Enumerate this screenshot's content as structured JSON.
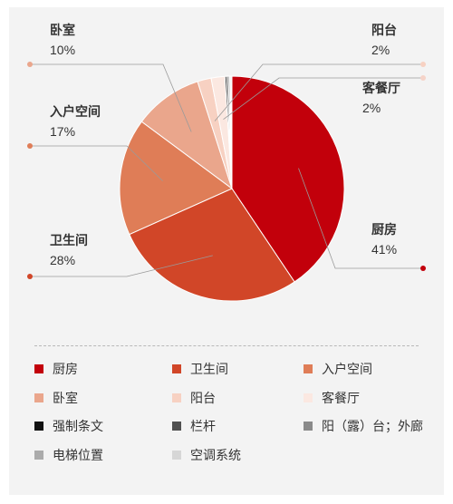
{
  "chart_data": {
    "type": "pie",
    "slices": [
      {
        "label": "厨房",
        "value": 41,
        "display": "41%",
        "color": "#c2000b"
      },
      {
        "label": "卫生间",
        "value": 28,
        "display": "28%",
        "color": "#d14628"
      },
      {
        "label": "入户空间",
        "value": 17,
        "display": "17%",
        "color": "#df7d57"
      },
      {
        "label": "卧室",
        "value": 10,
        "display": "10%",
        "color": "#eaa68c"
      },
      {
        "label": "阳台",
        "value": 2,
        "display": "2%",
        "color": "#f7d1c2"
      },
      {
        "label": "客餐厅",
        "value": 2,
        "display": "2%",
        "color": "#fbe8e1"
      },
      {
        "label": "强制条文",
        "value": 0.25,
        "display": "",
        "color": "#111111"
      },
      {
        "label": "栏杆",
        "value": 0.25,
        "display": "",
        "color": "#505050"
      },
      {
        "label": "阳（露）台；外廊",
        "value": 0.2,
        "display": "",
        "color": "#8a8a8a"
      },
      {
        "label": "电梯位置",
        "value": 0.15,
        "display": "",
        "color": "#ababab"
      },
      {
        "label": "空调系统",
        "value": 0.15,
        "display": "",
        "color": "#d6d6d6"
      }
    ],
    "legend_position": "bottom"
  },
  "legend": [
    {
      "label": "厨房",
      "color": "#c2000b"
    },
    {
      "label": "卫生间",
      "color": "#d14628"
    },
    {
      "label": "入户空间",
      "color": "#df7d57"
    },
    {
      "label": "卧室",
      "color": "#eaa68c"
    },
    {
      "label": "阳台",
      "color": "#f7d1c2"
    },
    {
      "label": "客餐厅",
      "color": "#fbe8e1"
    },
    {
      "label": "强制条文",
      "color": "#111111"
    },
    {
      "label": "栏杆",
      "color": "#505050"
    },
    {
      "label": "阳（露）台；外廊",
      "color": "#8a8a8a"
    },
    {
      "label": "电梯位置",
      "color": "#ababab"
    },
    {
      "label": "空调系统",
      "color": "#d6d6d6"
    }
  ]
}
